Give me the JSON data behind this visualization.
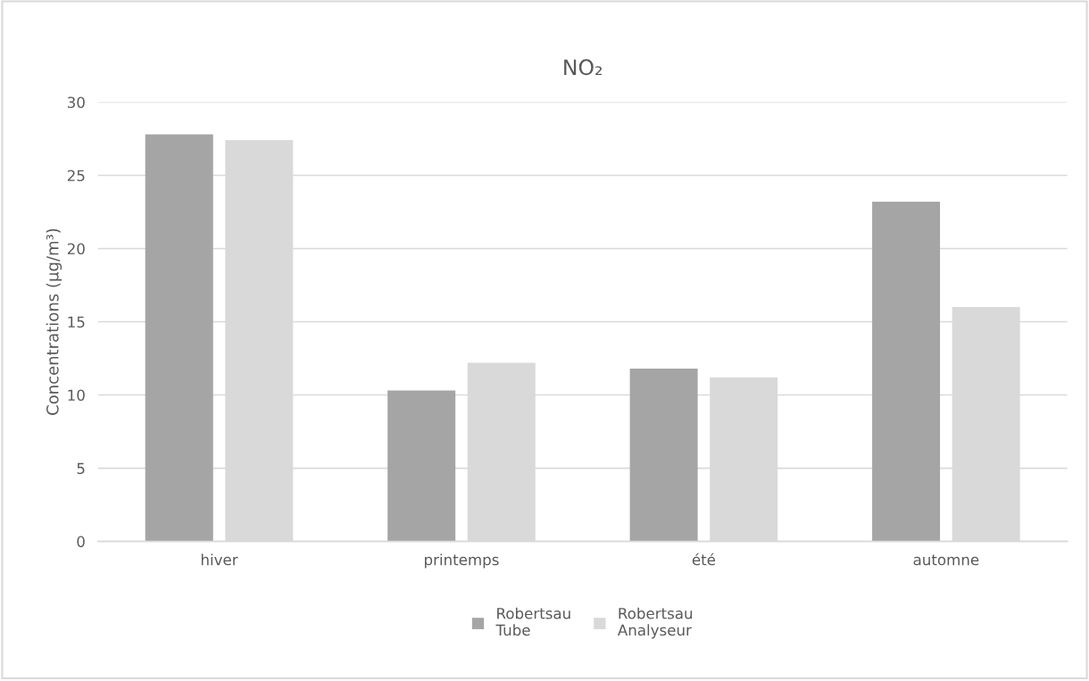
{
  "chart_data": {
    "type": "bar",
    "title": "NO₂",
    "ylabel": "Concentrations (µg/m³)",
    "categories": [
      "hiver",
      "printemps",
      "été",
      "automne"
    ],
    "series": [
      {
        "name": "Robertsau Tube",
        "color": "#a5a5a5",
        "values": [
          27.8,
          10.3,
          11.8,
          23.2
        ]
      },
      {
        "name": "Robertsau Analyseur",
        "color": "#d9d9d9",
        "values": [
          27.4,
          12.2,
          11.2,
          16.0
        ]
      }
    ],
    "ylim": [
      0,
      30
    ],
    "yticks": [
      0,
      5,
      10,
      15,
      20,
      25,
      30
    ],
    "grid": "y",
    "legend": "bottom"
  }
}
